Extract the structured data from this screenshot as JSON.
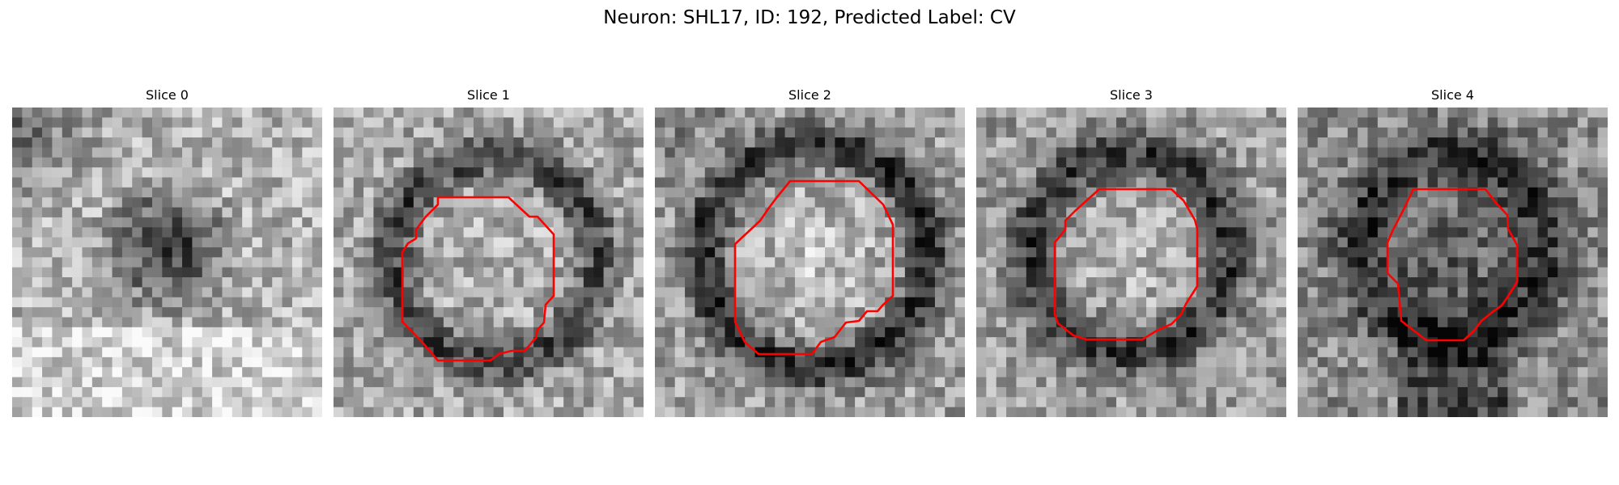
{
  "figure": {
    "suptitle": "Neuron: SHL17, ID: 192, Predicted Label: CV"
  },
  "slices": [
    {
      "title": "Slice 0",
      "contour_shown": false,
      "dark_center": [
        0.5,
        0.45
      ],
      "dark_radius": 0.26,
      "dark_strength": 0.55
    },
    {
      "title": "Slice 1",
      "contour_shown": true,
      "contour_color": "#ff0000"
    },
    {
      "title": "Slice 2",
      "contour_shown": true,
      "contour_color": "#ff0000"
    },
    {
      "title": "Slice 3",
      "contour_shown": true,
      "contour_color": "#ff0000"
    },
    {
      "title": "Slice 4",
      "contour_shown": true,
      "contour_color": "#ff0000"
    }
  ]
}
